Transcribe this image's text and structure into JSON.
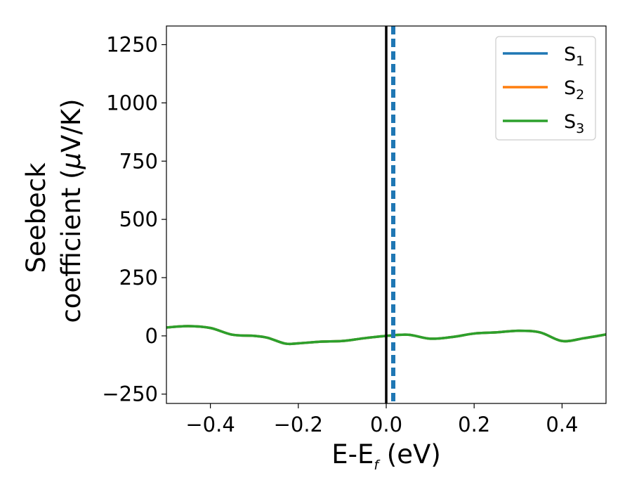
{
  "chart_data": {
    "type": "line",
    "xlabel": {
      "main": "E-E",
      "sub": "f",
      "unit": " (eV)"
    },
    "ylabel": {
      "line1": "Seebeck",
      "line2_prefix": "coefficient  (",
      "mu": "μ",
      "line2_suffix": "V/K)"
    },
    "xlim": [
      -0.5,
      0.5
    ],
    "ylim": [
      -290,
      1330
    ],
    "x_ticks": [
      -0.4,
      -0.2,
      0.0,
      0.2,
      0.4
    ],
    "x_tick_labels": [
      "−0.4",
      "−0.2",
      "0.0",
      "0.2",
      "0.4"
    ],
    "y_ticks": [
      -250,
      0,
      250,
      500,
      750,
      1000,
      1250
    ],
    "y_tick_labels": [
      "−250",
      "0",
      "250",
      "500",
      "750",
      "1000",
      "1250"
    ],
    "grid": false,
    "legend_position": "top-right",
    "vertical_lines": [
      {
        "x": 0.0,
        "color": "#000000",
        "style": "solid"
      },
      {
        "x": 0.016,
        "color": "#1f77b4",
        "style": "dashed"
      }
    ],
    "series": [
      {
        "name": "S",
        "sub": "1",
        "color": "#1f77b4",
        "x": [
          -0.5,
          -0.45,
          -0.4,
          -0.35,
          -0.3,
          -0.27,
          -0.23,
          -0.2,
          -0.15,
          -0.1,
          -0.05,
          0.0,
          0.05,
          0.1,
          0.15,
          0.2,
          0.25,
          0.3,
          0.35,
          0.4,
          0.45,
          0.5
        ],
        "y": [
          36,
          42,
          34,
          5,
          0,
          -8,
          -33,
          -32,
          -25,
          -22,
          -10,
          0,
          5,
          -12,
          -5,
          10,
          15,
          22,
          15,
          -22,
          -10,
          6
        ]
      },
      {
        "name": "S",
        "sub": "2",
        "color": "#ff7f0e",
        "x": [
          -0.5,
          -0.45,
          -0.4,
          -0.35,
          -0.3,
          -0.27,
          -0.23,
          -0.2,
          -0.15,
          -0.1,
          -0.05,
          0.0,
          0.05,
          0.1,
          0.15,
          0.2,
          0.25,
          0.3,
          0.35,
          0.4,
          0.45,
          0.5
        ],
        "y": [
          36,
          42,
          34,
          5,
          0,
          -8,
          -33,
          -32,
          -25,
          -22,
          -10,
          0,
          5,
          -12,
          -5,
          10,
          15,
          22,
          15,
          -22,
          -10,
          6
        ]
      },
      {
        "name": "S",
        "sub": "3",
        "color": "#2ca02c",
        "x": [
          -0.5,
          -0.45,
          -0.4,
          -0.35,
          -0.3,
          -0.27,
          -0.23,
          -0.2,
          -0.15,
          -0.1,
          -0.05,
          0.0,
          0.05,
          0.1,
          0.15,
          0.2,
          0.25,
          0.3,
          0.35,
          0.4,
          0.45,
          0.5
        ],
        "y": [
          36,
          42,
          34,
          5,
          0,
          -8,
          -33,
          -32,
          -25,
          -22,
          -10,
          0,
          5,
          -12,
          -5,
          10,
          15,
          22,
          15,
          -22,
          -10,
          6
        ]
      }
    ]
  }
}
